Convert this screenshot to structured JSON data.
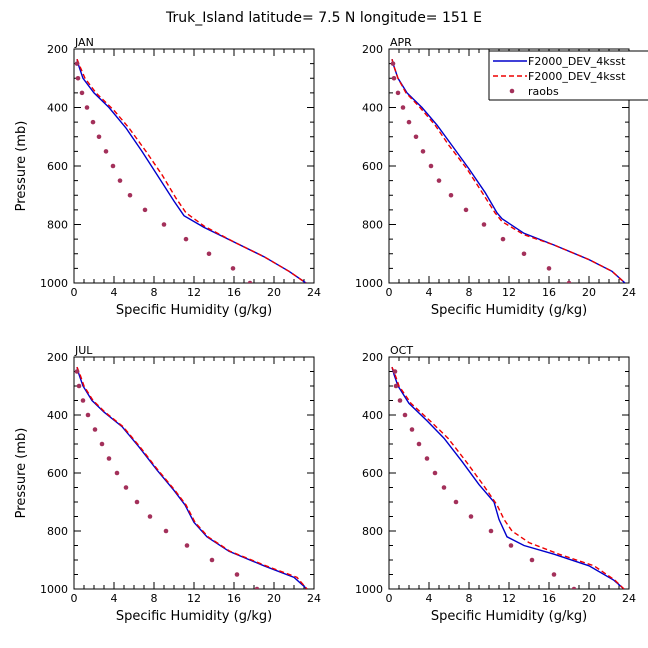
{
  "title": "Truk_Island   latitude=  7.5 N longitude=  151 E",
  "colors": {
    "model1": "#0000cc",
    "model2": "#ee0000",
    "raobs": "#a3305a"
  },
  "legend": {
    "items": [
      {
        "label": "F2000_DEV_4ksst",
        "style": "solid"
      },
      {
        "label": "F2000_DEV_4ksst",
        "style": "dashed"
      },
      {
        "label": "raobs",
        "style": "dots"
      }
    ]
  },
  "chart_data": [
    {
      "type": "line",
      "panel": "JAN",
      "xlabel": "Specific Humidity (g/kg)",
      "ylabel": "Pressure (mb)",
      "xlim": [
        0,
        24
      ],
      "ylim": [
        1000,
        200
      ],
      "xticks": [
        "0",
        "4",
        "8",
        "12",
        "16",
        "20",
        "24"
      ],
      "yticks": [
        "200",
        "400",
        "600",
        "800",
        "1000"
      ],
      "series": [
        {
          "style": "solid",
          "points": [
            [
              0.3,
              235
            ],
            [
              0.5,
              260
            ],
            [
              0.9,
              300
            ],
            [
              2.0,
              350
            ],
            [
              3.5,
              400
            ],
            [
              5.2,
              470
            ],
            [
              6.8,
              550
            ],
            [
              8.5,
              640
            ],
            [
              10.0,
              720
            ],
            [
              11.0,
              770
            ],
            [
              13.0,
              810
            ],
            [
              16.0,
              860
            ],
            [
              19.0,
              910
            ],
            [
              21.5,
              960
            ],
            [
              23.2,
              1000
            ]
          ]
        },
        {
          "style": "dashed",
          "points": [
            [
              0.3,
              235
            ],
            [
              0.6,
              260
            ],
            [
              1.1,
              300
            ],
            [
              2.2,
              350
            ],
            [
              4.0,
              410
            ],
            [
              5.5,
              470
            ],
            [
              7.2,
              550
            ],
            [
              8.8,
              630
            ],
            [
              10.2,
              710
            ],
            [
              11.2,
              760
            ],
            [
              13.0,
              805
            ],
            [
              16.0,
              860
            ],
            [
              19.0,
              910
            ],
            [
              21.5,
              960
            ],
            [
              23.2,
              1000
            ]
          ]
        },
        {
          "style": "dots",
          "points": [
            [
              0.3,
              250
            ],
            [
              0.4,
              300
            ],
            [
              0.8,
              350
            ],
            [
              1.3,
              400
            ],
            [
              1.9,
              450
            ],
            [
              2.5,
              500
            ],
            [
              3.2,
              550
            ],
            [
              3.9,
              600
            ],
            [
              4.6,
              650
            ],
            [
              5.6,
              700
            ],
            [
              7.1,
              750
            ],
            [
              9.0,
              800
            ],
            [
              11.2,
              850
            ],
            [
              13.5,
              900
            ],
            [
              15.9,
              950
            ],
            [
              17.6,
              1000
            ]
          ]
        }
      ]
    },
    {
      "type": "line",
      "panel": "APR",
      "xlabel": "Specific Humidity (g/kg)",
      "ylabel": "Pressure (mb)",
      "xlim": [
        0,
        24
      ],
      "ylim": [
        1000,
        200
      ],
      "xticks": [
        "0",
        "4",
        "8",
        "12",
        "16",
        "20",
        "24"
      ],
      "yticks": [
        "200",
        "400",
        "600",
        "800",
        "1000"
      ],
      "series": [
        {
          "style": "solid",
          "points": [
            [
              0.3,
              235
            ],
            [
              0.5,
              260
            ],
            [
              0.9,
              300
            ],
            [
              1.8,
              350
            ],
            [
              3.3,
              400
            ],
            [
              4.8,
              460
            ],
            [
              6.3,
              530
            ],
            [
              8.0,
              610
            ],
            [
              9.6,
              690
            ],
            [
              10.8,
              760
            ],
            [
              11.3,
              780
            ],
            [
              13.5,
              830
            ],
            [
              16.5,
              870
            ],
            [
              20.0,
              920
            ],
            [
              22.3,
              960
            ],
            [
              23.6,
              1000
            ]
          ]
        },
        {
          "style": "dashed",
          "points": [
            [
              0.3,
              235
            ],
            [
              0.5,
              260
            ],
            [
              0.9,
              300
            ],
            [
              1.7,
              350
            ],
            [
              3.1,
              400
            ],
            [
              4.6,
              460
            ],
            [
              6.0,
              530
            ],
            [
              7.8,
              610
            ],
            [
              9.3,
              690
            ],
            [
              10.6,
              760
            ],
            [
              11.3,
              790
            ],
            [
              13.5,
              835
            ],
            [
              16.5,
              870
            ],
            [
              20.0,
              920
            ],
            [
              22.3,
              960
            ],
            [
              23.6,
              1000
            ]
          ]
        },
        {
          "style": "dots",
          "points": [
            [
              0.4,
              250
            ],
            [
              0.5,
              300
            ],
            [
              0.9,
              350
            ],
            [
              1.4,
              400
            ],
            [
              2.0,
              450
            ],
            [
              2.7,
              500
            ],
            [
              3.4,
              550
            ],
            [
              4.2,
              600
            ],
            [
              5.0,
              650
            ],
            [
              6.2,
              700
            ],
            [
              7.7,
              750
            ],
            [
              9.5,
              800
            ],
            [
              11.4,
              850
            ],
            [
              13.5,
              900
            ],
            [
              16.0,
              950
            ],
            [
              18.0,
              1000
            ]
          ]
        }
      ]
    },
    {
      "type": "line",
      "panel": "JUL",
      "xlabel": "Specific Humidity (g/kg)",
      "ylabel": "Pressure (mb)",
      "xlim": [
        0,
        24
      ],
      "ylim": [
        1000,
        200
      ],
      "xticks": [
        "0",
        "4",
        "8",
        "12",
        "16",
        "20",
        "24"
      ],
      "yticks": [
        "200",
        "400",
        "600",
        "800",
        "1000"
      ],
      "series": [
        {
          "style": "solid",
          "points": [
            [
              0.3,
              235
            ],
            [
              0.5,
              260
            ],
            [
              0.9,
              300
            ],
            [
              1.8,
              350
            ],
            [
              3.0,
              390
            ],
            [
              4.8,
              440
            ],
            [
              6.5,
              510
            ],
            [
              8.3,
              590
            ],
            [
              10.0,
              660
            ],
            [
              11.1,
              710
            ],
            [
              12.0,
              770
            ],
            [
              13.3,
              820
            ],
            [
              15.5,
              870
            ],
            [
              19.0,
              920
            ],
            [
              22.0,
              960
            ],
            [
              23.3,
              1000
            ]
          ]
        },
        {
          "style": "dashed",
          "points": [
            [
              0.3,
              235
            ],
            [
              0.6,
              260
            ],
            [
              1.0,
              300
            ],
            [
              1.9,
              350
            ],
            [
              3.1,
              390
            ],
            [
              4.9,
              440
            ],
            [
              6.6,
              510
            ],
            [
              8.4,
              590
            ],
            [
              10.1,
              660
            ],
            [
              11.2,
              710
            ],
            [
              12.1,
              770
            ],
            [
              13.4,
              820
            ],
            [
              15.6,
              870
            ],
            [
              19.2,
              920
            ],
            [
              22.3,
              960
            ],
            [
              23.3,
              1000
            ]
          ]
        },
        {
          "style": "dots",
          "points": [
            [
              0.3,
              250
            ],
            [
              0.5,
              300
            ],
            [
              0.9,
              350
            ],
            [
              1.4,
              400
            ],
            [
              2.1,
              450
            ],
            [
              2.8,
              500
            ],
            [
              3.5,
              550
            ],
            [
              4.3,
              600
            ],
            [
              5.2,
              650
            ],
            [
              6.3,
              700
            ],
            [
              7.6,
              750
            ],
            [
              9.2,
              800
            ],
            [
              11.3,
              850
            ],
            [
              13.8,
              900
            ],
            [
              16.3,
              950
            ],
            [
              18.3,
              1000
            ]
          ]
        }
      ]
    },
    {
      "type": "line",
      "panel": "OCT",
      "xlabel": "Specific Humidity (g/kg)",
      "ylabel": "Pressure (mb)",
      "xlim": [
        0,
        24
      ],
      "ylim": [
        1000,
        200
      ],
      "xticks": [
        "0",
        "4",
        "8",
        "12",
        "16",
        "20",
        "24"
      ],
      "yticks": [
        "200",
        "400",
        "600",
        "800",
        "1000"
      ],
      "series": [
        {
          "style": "solid",
          "points": [
            [
              0.3,
              235
            ],
            [
              0.5,
              260
            ],
            [
              0.9,
              300
            ],
            [
              2.0,
              360
            ],
            [
              3.8,
              420
            ],
            [
              5.5,
              480
            ],
            [
              7.3,
              560
            ],
            [
              9.0,
              640
            ],
            [
              10.5,
              700
            ],
            [
              11.0,
              760
            ],
            [
              11.8,
              820
            ],
            [
              13.5,
              850
            ],
            [
              16.5,
              880
            ],
            [
              20.0,
              920
            ],
            [
              22.5,
              970
            ],
            [
              23.5,
              1000
            ]
          ]
        },
        {
          "style": "dashed",
          "points": [
            [
              0.3,
              235
            ],
            [
              0.6,
              260
            ],
            [
              1.0,
              300
            ],
            [
              2.2,
              360
            ],
            [
              4.1,
              420
            ],
            [
              5.9,
              480
            ],
            [
              7.7,
              560
            ],
            [
              9.4,
              640
            ],
            [
              10.8,
              710
            ],
            [
              11.5,
              760
            ],
            [
              12.3,
              800
            ],
            [
              14.0,
              840
            ],
            [
              17.0,
              880
            ],
            [
              20.5,
              920
            ],
            [
              22.6,
              970
            ],
            [
              23.5,
              1000
            ]
          ]
        },
        {
          "style": "dots",
          "points": [
            [
              0.6,
              250
            ],
            [
              0.7,
              300
            ],
            [
              1.1,
              350
            ],
            [
              1.6,
              400
            ],
            [
              2.3,
              450
            ],
            [
              3.0,
              500
            ],
            [
              3.8,
              550
            ],
            [
              4.6,
              600
            ],
            [
              5.5,
              650
            ],
            [
              6.7,
              700
            ],
            [
              8.2,
              750
            ],
            [
              10.2,
              800
            ],
            [
              12.2,
              850
            ],
            [
              14.3,
              900
            ],
            [
              16.5,
              950
            ],
            [
              18.5,
              1000
            ]
          ]
        }
      ]
    }
  ]
}
